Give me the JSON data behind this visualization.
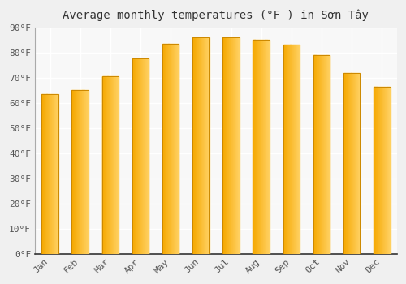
{
  "title": "Average monthly temperatures (°F ) in Sơn Tây",
  "months": [
    "Jan",
    "Feb",
    "Mar",
    "Apr",
    "May",
    "Jun",
    "Jul",
    "Aug",
    "Sep",
    "Oct",
    "Nov",
    "Dec"
  ],
  "values": [
    63.5,
    65.0,
    70.5,
    77.5,
    83.5,
    86.0,
    86.0,
    85.0,
    83.0,
    79.0,
    72.0,
    66.5
  ],
  "bar_color_left": "#F5A800",
  "bar_color_right": "#FFD060",
  "bar_edge_color": "#CC8800",
  "ylim": [
    0,
    90
  ],
  "yticks": [
    0,
    10,
    20,
    30,
    40,
    50,
    60,
    70,
    80,
    90
  ],
  "ytick_labels": [
    "0°F",
    "10°F",
    "20°F",
    "30°F",
    "40°F",
    "50°F",
    "60°F",
    "70°F",
    "80°F",
    "90°F"
  ],
  "background_color": "#f0f0f0",
  "plot_bg_color": "#f8f8f8",
  "grid_color": "#ffffff",
  "title_fontsize": 10,
  "tick_fontsize": 8,
  "figsize": [
    5.0,
    3.5
  ],
  "dpi": 100,
  "bar_width": 0.55
}
